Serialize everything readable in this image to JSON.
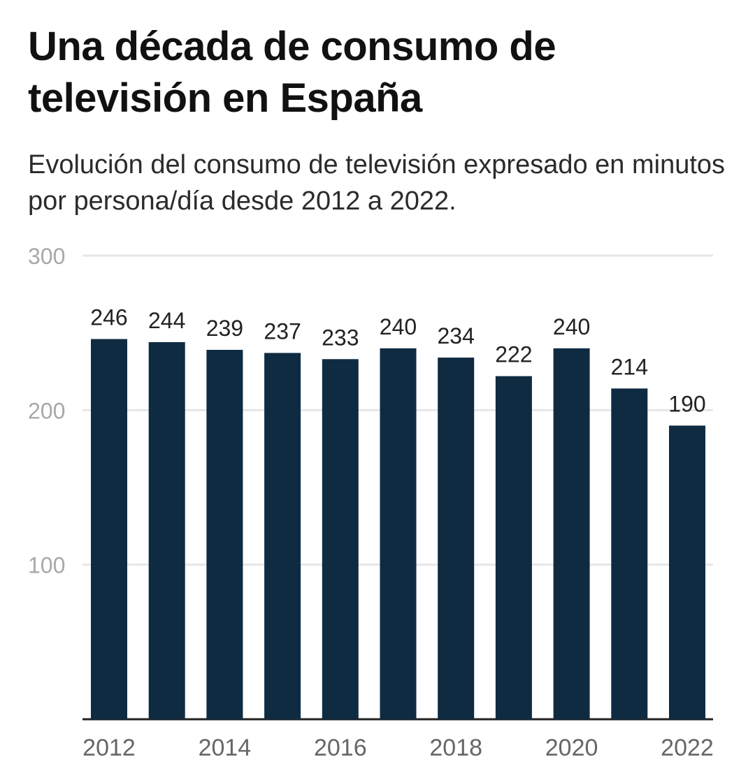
{
  "header": {
    "title": "Una década de consumo de televisión en España",
    "subtitle": "Evolución del consumo de televisión expresado en minutos por persona/día desde 2012 a 2022."
  },
  "colors": {
    "bar": "#0f2b42",
    "grid": "#e6e6e6",
    "baseline": "#222222",
    "tick_label": "#a8a8a8",
    "x_tick_label": "#666666",
    "value_label": "#222222"
  },
  "chart_data": {
    "type": "bar",
    "title": "Una década de consumo de televisión en España",
    "subtitle": "Evolución del consumo de televisión expresado en minutos por persona/día desde 2012 a 2022.",
    "xlabel": "",
    "ylabel": "",
    "categories": [
      "2012",
      "2013",
      "2014",
      "2015",
      "2016",
      "2017",
      "2018",
      "2019",
      "2020",
      "2021",
      "2022"
    ],
    "values": [
      246,
      244,
      239,
      237,
      233,
      240,
      234,
      222,
      240,
      214,
      190
    ],
    "ylim": [
      0,
      300
    ],
    "yticks": [
      100,
      200,
      300
    ],
    "xtick_labels": [
      "2012",
      "2014",
      "2016",
      "2018",
      "2020",
      "2022"
    ],
    "data_labels": true,
    "grid": true,
    "legend": "none"
  }
}
